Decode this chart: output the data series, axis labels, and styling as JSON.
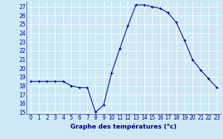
{
  "hours": [
    0,
    1,
    2,
    3,
    4,
    5,
    6,
    7,
    8,
    9,
    10,
    11,
    12,
    13,
    14,
    15,
    16,
    17,
    18,
    19,
    20,
    21,
    22,
    23
  ],
  "temperatures": [
    18.5,
    18.5,
    18.5,
    18.5,
    18.5,
    18.0,
    17.8,
    17.8,
    15.0,
    15.8,
    19.5,
    22.2,
    24.8,
    27.2,
    27.2,
    27.0,
    26.8,
    26.3,
    25.2,
    23.2,
    21.0,
    19.8,
    18.8,
    17.8
  ],
  "line_color": "#00008b",
  "marker": "+",
  "marker_size": 3,
  "marker_linewidth": 0.8,
  "xlabel": "Graphe des températures (°c)",
  "xlabel_color": "#00008b",
  "xlim": [
    -0.5,
    23.5
  ],
  "ylim": [
    14.8,
    27.6
  ],
  "yticks": [
    15,
    16,
    17,
    18,
    19,
    20,
    21,
    22,
    23,
    24,
    25,
    26,
    27
  ],
  "xticks": [
    0,
    1,
    2,
    3,
    4,
    5,
    6,
    7,
    8,
    9,
    10,
    11,
    12,
    13,
    14,
    15,
    16,
    17,
    18,
    19,
    20,
    21,
    22,
    23
  ],
  "background_color": "#cce9f5",
  "grid_color": "#ffffff",
  "tick_color": "#00008b",
  "tick_fontsize": 5.5,
  "xlabel_fontsize": 6.5,
  "line_width": 0.8,
  "spine_color": "#5555aa"
}
